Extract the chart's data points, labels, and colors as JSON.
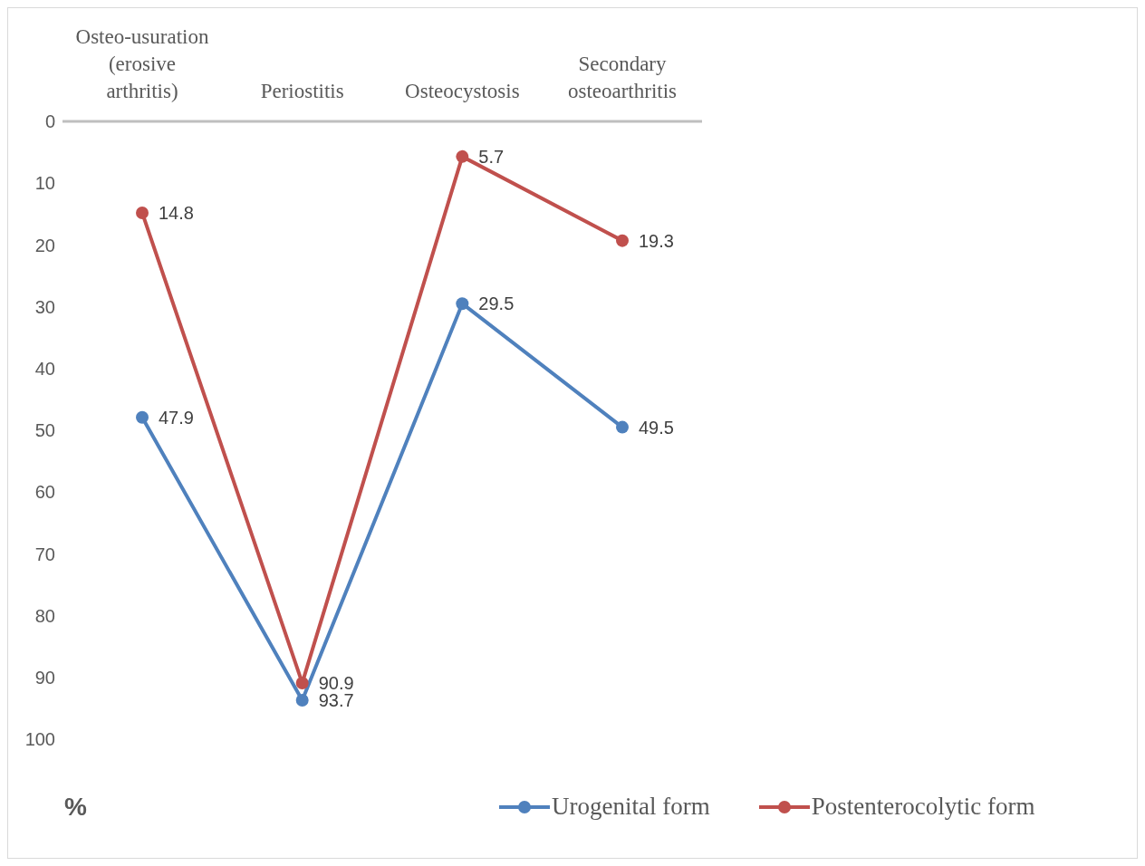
{
  "chart_data": {
    "type": "line",
    "annotations": [
      "%"
    ],
    "categories": [
      "Osteo-usuration (erosive arthritis)",
      "Periostitis",
      "Osteocystosis",
      "Secondary osteoarthritis"
    ],
    "series": [
      {
        "name": "Urogenital form",
        "color": "#4f81bd",
        "values": [
          47.9,
          93.7,
          29.5,
          49.5
        ]
      },
      {
        "name": "Postenterocolytic form",
        "color": "#c0504d",
        "values": [
          14.8,
          90.9,
          5.7,
          19.3
        ]
      }
    ],
    "ylim": [
      100,
      0
    ],
    "yticks": [
      0,
      10,
      20,
      30,
      40,
      50,
      60,
      70,
      80,
      90,
      100
    ],
    "grid": false,
    "legend": "bottom right",
    "marker": "circle",
    "line_style": "solid",
    "data_labels": true
  }
}
